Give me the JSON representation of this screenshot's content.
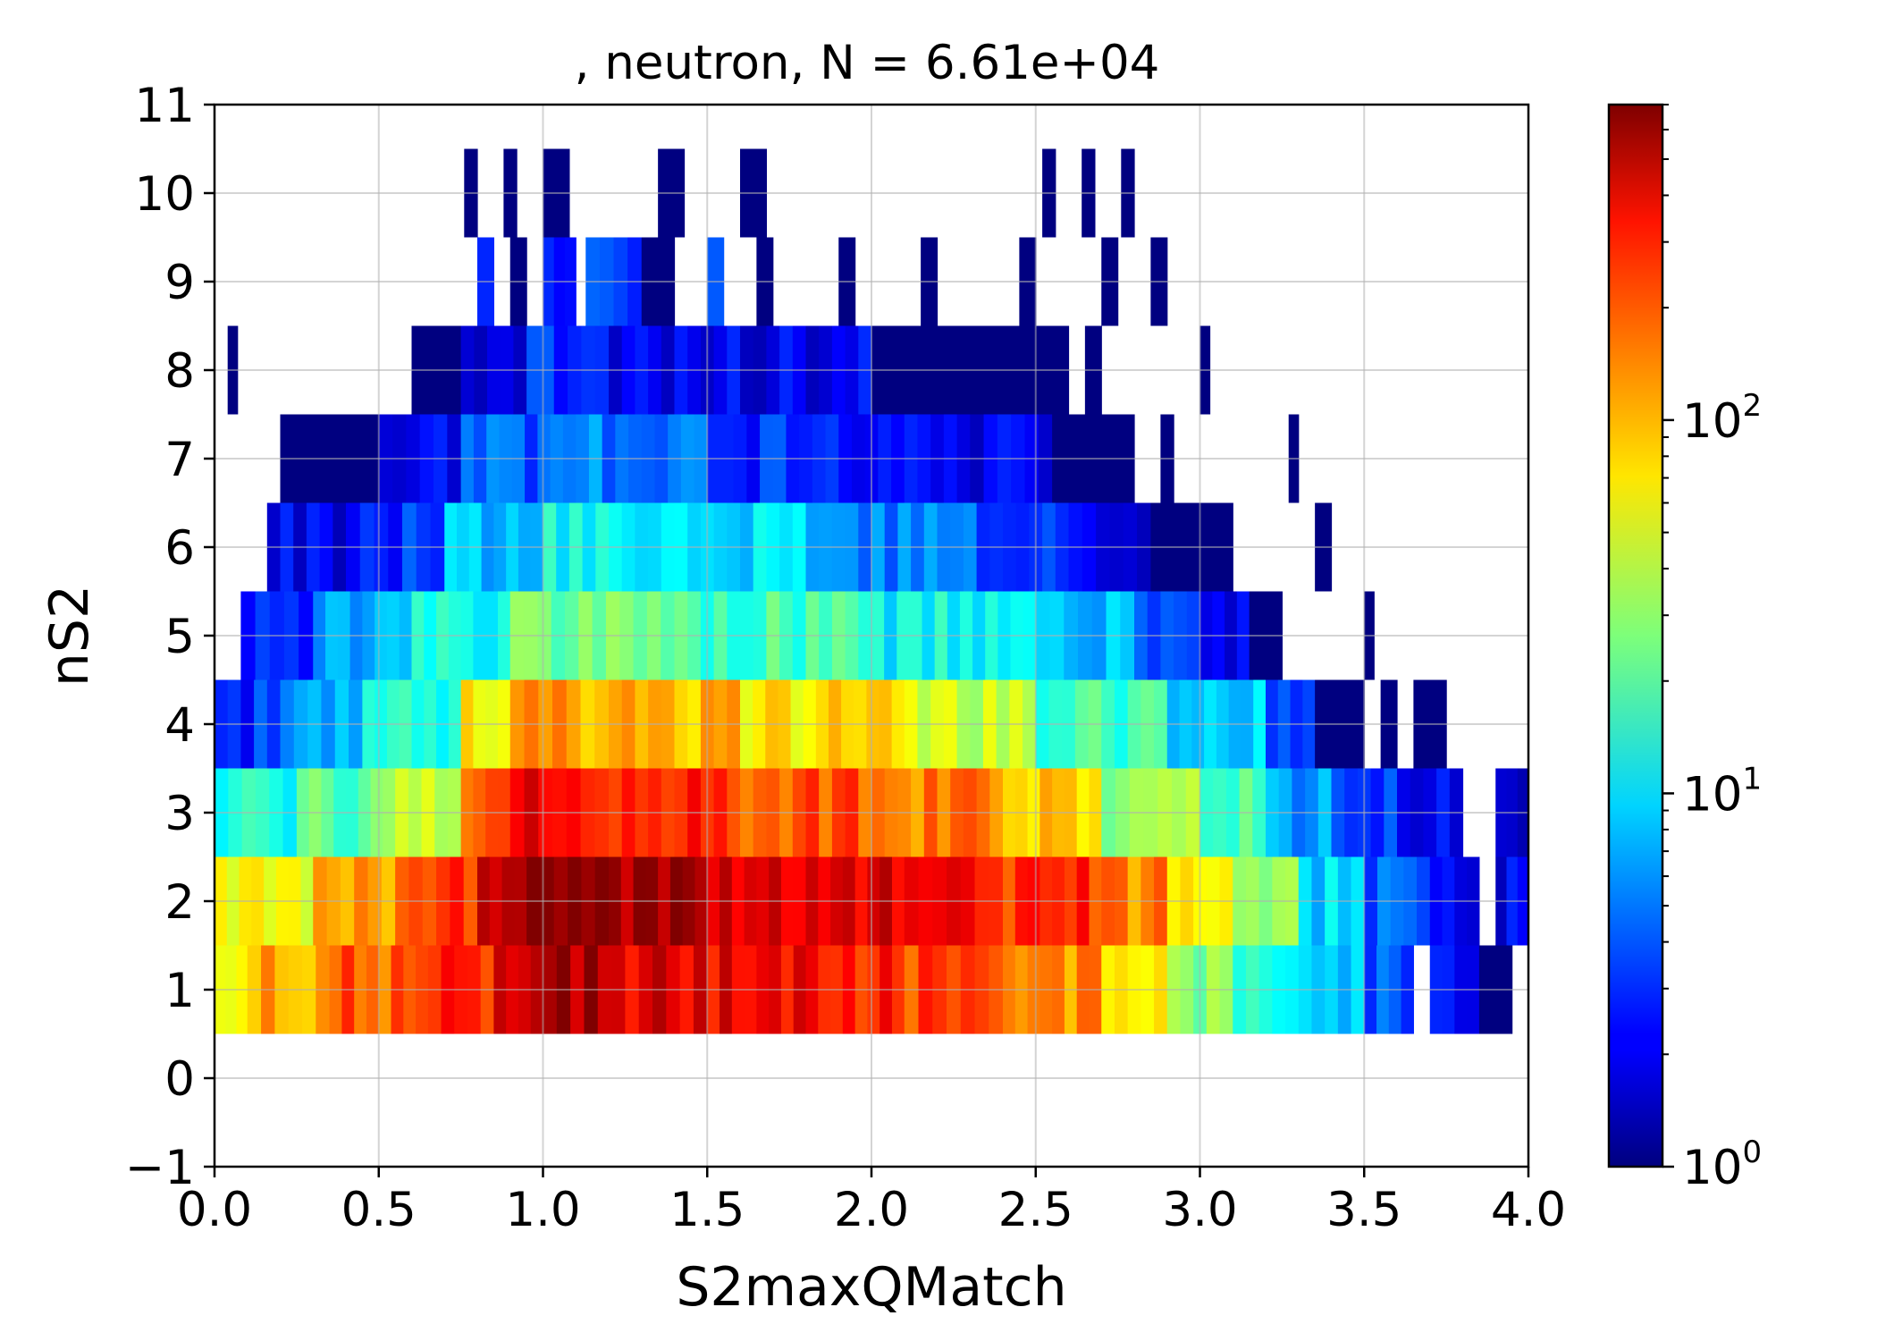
{
  "chart_data": {
    "type": "heatmap",
    "title": ", neutron, N = 6.61e+04",
    "xlabel": "S2maxQMatch",
    "ylabel": "nS2",
    "xlim": [
      0.0,
      4.0
    ],
    "ylim": [
      -1,
      11
    ],
    "x_ticks": [
      "0.0",
      "0.5",
      "1.0",
      "1.5",
      "2.0",
      "2.5",
      "3.0",
      "3.5",
      "4.0"
    ],
    "y_ticks": [
      "−1",
      "0",
      "1",
      "2",
      "3",
      "4",
      "5",
      "6",
      "7",
      "8",
      "9",
      "10",
      "11"
    ],
    "grid": true,
    "colormap": "jet",
    "color_scale": "log",
    "colorbar": {
      "vmin": 1,
      "vmax": 700,
      "ticks": [
        {
          "base": "10",
          "exp": "0",
          "value": 1
        },
        {
          "base": "10",
          "exp": "1",
          "value": 10
        },
        {
          "base": "10",
          "exp": "2",
          "value": 100
        }
      ]
    },
    "bin_width": 0.04,
    "rows": [
      {
        "nS2": 1,
        "segments": [
          [
            0.0,
            0.1,
            60
          ],
          [
            0.1,
            0.35,
            110
          ],
          [
            0.35,
            0.65,
            170
          ],
          [
            0.65,
            0.85,
            260
          ],
          [
            0.85,
            1.0,
            480
          ],
          [
            1.0,
            1.25,
            560
          ],
          [
            1.25,
            1.5,
            380
          ],
          [
            1.5,
            1.8,
            320
          ],
          [
            1.8,
            2.1,
            260
          ],
          [
            2.1,
            2.4,
            190
          ],
          [
            2.4,
            2.7,
            120
          ],
          [
            2.7,
            2.9,
            60
          ],
          [
            2.9,
            3.1,
            30
          ],
          [
            3.1,
            3.3,
            14
          ],
          [
            3.3,
            3.5,
            7
          ],
          [
            3.5,
            3.65,
            4
          ],
          [
            3.7,
            3.85,
            2
          ],
          [
            3.85,
            3.95,
            1
          ]
        ]
      },
      {
        "nS2": 2,
        "segments": [
          [
            0.0,
            0.3,
            55
          ],
          [
            0.3,
            0.55,
            110
          ],
          [
            0.55,
            0.8,
            200
          ],
          [
            0.8,
            0.95,
            400
          ],
          [
            0.95,
            1.2,
            720
          ],
          [
            1.2,
            1.5,
            560
          ],
          [
            1.5,
            1.8,
            440
          ],
          [
            1.8,
            2.1,
            380
          ],
          [
            2.1,
            2.4,
            300
          ],
          [
            2.4,
            2.7,
            220
          ],
          [
            2.7,
            2.9,
            130
          ],
          [
            2.9,
            3.1,
            60
          ],
          [
            3.1,
            3.3,
            25
          ],
          [
            3.3,
            3.5,
            9
          ],
          [
            3.5,
            3.7,
            4
          ],
          [
            3.7,
            3.85,
            2
          ],
          [
            3.9,
            4.0,
            2
          ]
        ]
      },
      {
        "nS2": 3,
        "segments": [
          [
            0.0,
            0.25,
            13
          ],
          [
            0.25,
            0.55,
            22
          ],
          [
            0.55,
            0.75,
            50
          ],
          [
            0.75,
            0.9,
            170
          ],
          [
            0.9,
            1.2,
            330
          ],
          [
            1.2,
            1.6,
            240
          ],
          [
            1.6,
            2.0,
            180
          ],
          [
            2.0,
            2.4,
            130
          ],
          [
            2.4,
            2.7,
            80
          ],
          [
            2.7,
            3.0,
            30
          ],
          [
            3.0,
            3.2,
            18
          ],
          [
            3.2,
            3.4,
            6
          ],
          [
            3.4,
            3.6,
            3
          ],
          [
            3.6,
            3.8,
            2
          ],
          [
            3.9,
            4.0,
            2
          ]
        ]
      },
      {
        "nS2": 4,
        "segments": [
          [
            0.0,
            0.2,
            3
          ],
          [
            0.2,
            0.45,
            6
          ],
          [
            0.45,
            0.75,
            16
          ],
          [
            0.75,
            0.9,
            70
          ],
          [
            0.9,
            1.2,
            110
          ],
          [
            1.2,
            1.6,
            90
          ],
          [
            1.6,
            2.1,
            70
          ],
          [
            2.1,
            2.5,
            40
          ],
          [
            2.5,
            2.9,
            18
          ],
          [
            2.9,
            3.2,
            10
          ],
          [
            3.2,
            3.35,
            4
          ],
          [
            3.35,
            3.5,
            1
          ],
          [
            3.55,
            3.6,
            1
          ],
          [
            3.65,
            3.75,
            1
          ]
        ]
      },
      {
        "nS2": 5,
        "segments": [
          [
            0.08,
            0.3,
            3
          ],
          [
            0.3,
            0.6,
            7
          ],
          [
            0.6,
            0.9,
            13
          ],
          [
            0.9,
            1.4,
            22
          ],
          [
            1.4,
            2.0,
            18
          ],
          [
            2.0,
            2.5,
            12
          ],
          [
            2.5,
            2.8,
            8
          ],
          [
            2.8,
            3.0,
            4
          ],
          [
            3.0,
            3.15,
            2
          ],
          [
            3.15,
            3.25,
            1
          ],
          [
            3.5,
            3.53,
            1
          ]
        ]
      },
      {
        "nS2": 6,
        "segments": [
          [
            0.16,
            0.4,
            2
          ],
          [
            0.4,
            0.7,
            3
          ],
          [
            0.7,
            1.0,
            8
          ],
          [
            1.0,
            1.4,
            13
          ],
          [
            1.4,
            1.8,
            9
          ],
          [
            1.8,
            2.2,
            5
          ],
          [
            2.2,
            2.6,
            4
          ],
          [
            2.6,
            2.85,
            2
          ],
          [
            2.85,
            3.1,
            1
          ],
          [
            3.35,
            3.4,
            1
          ]
        ]
      },
      {
        "nS2": 7,
        "segments": [
          [
            0.2,
            0.5,
            1
          ],
          [
            0.5,
            0.75,
            2
          ],
          [
            0.75,
            1.1,
            4
          ],
          [
            1.1,
            1.5,
            5
          ],
          [
            1.5,
            1.9,
            3
          ],
          [
            1.9,
            2.3,
            2
          ],
          [
            2.3,
            2.55,
            2
          ],
          [
            2.55,
            2.8,
            1
          ],
          [
            2.88,
            2.92,
            1
          ],
          [
            3.27,
            3.3,
            1
          ]
        ]
      },
      {
        "nS2": 8,
        "segments": [
          [
            0.04,
            0.07,
            1
          ],
          [
            0.6,
            0.75,
            1
          ],
          [
            0.75,
            0.95,
            2
          ],
          [
            0.95,
            1.2,
            3
          ],
          [
            1.2,
            1.6,
            2
          ],
          [
            1.6,
            2.0,
            2
          ],
          [
            2.0,
            2.4,
            1
          ],
          [
            2.4,
            2.6,
            1
          ],
          [
            2.65,
            2.7,
            1
          ],
          [
            3.0,
            3.03,
            1
          ]
        ]
      },
      {
        "nS2": 9,
        "segments": [
          [
            0.8,
            0.85,
            2
          ],
          [
            0.9,
            0.95,
            1
          ],
          [
            1.0,
            1.1,
            2
          ],
          [
            1.13,
            1.3,
            4
          ],
          [
            1.3,
            1.4,
            1
          ],
          [
            1.5,
            1.55,
            3
          ],
          [
            1.65,
            1.7,
            1
          ],
          [
            1.9,
            1.95,
            1
          ],
          [
            2.15,
            2.2,
            1
          ],
          [
            2.45,
            2.5,
            1
          ],
          [
            2.7,
            2.75,
            1
          ],
          [
            2.85,
            2.9,
            1
          ]
        ]
      },
      {
        "nS2": 10,
        "segments": [
          [
            0.76,
            0.8,
            1
          ],
          [
            0.88,
            0.92,
            1
          ],
          [
            1.0,
            1.08,
            1
          ],
          [
            1.35,
            1.43,
            1
          ],
          [
            1.6,
            1.68,
            1
          ],
          [
            2.52,
            2.56,
            1
          ],
          [
            2.64,
            2.68,
            1
          ],
          [
            2.76,
            2.8,
            1
          ]
        ]
      }
    ]
  }
}
